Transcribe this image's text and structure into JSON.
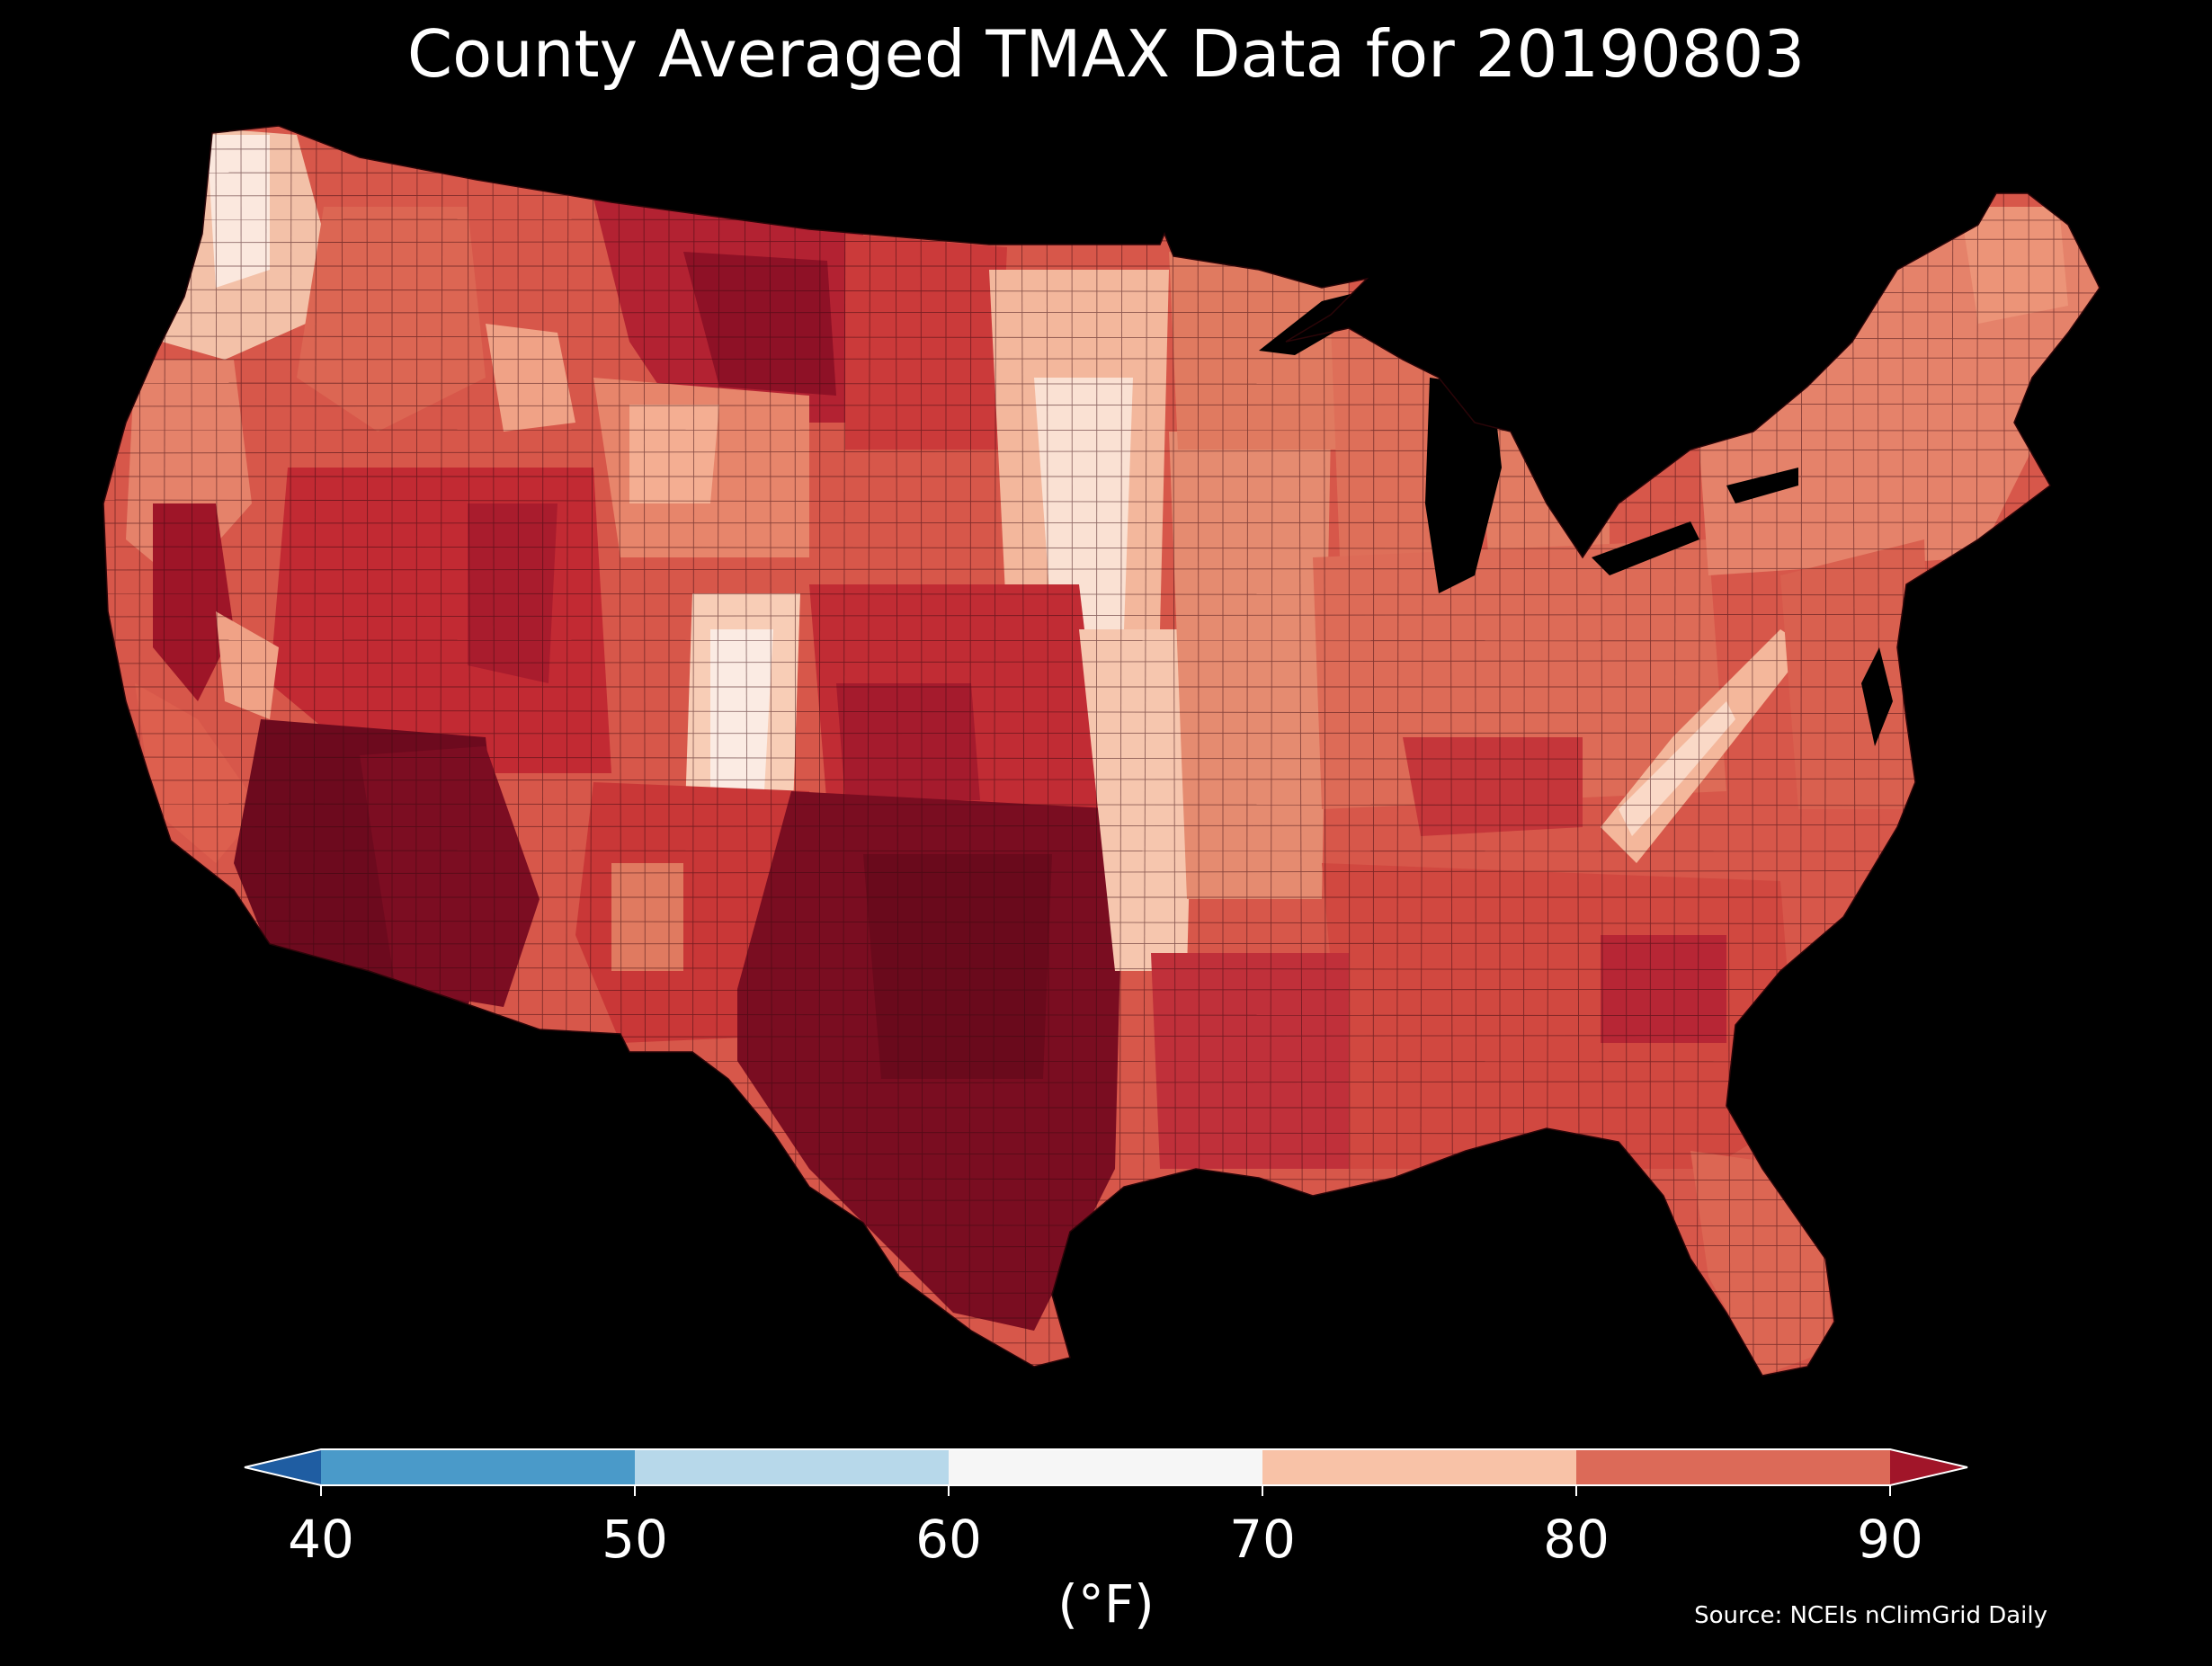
{
  "title": "County Averaged TMAX Data for 20190803",
  "source": "Source: NCEIs nClimGrid Daily",
  "colorbar": {
    "unit": "(°F)",
    "ticks": [
      "40",
      "50",
      "60",
      "70",
      "80",
      "90"
    ],
    "bins": [
      {
        "from": 40,
        "to": 50,
        "color": "#4a9ac9"
      },
      {
        "from": 50,
        "to": 60,
        "color": "#b7d8ea"
      },
      {
        "from": 60,
        "to": 70,
        "color": "#f6f6f6"
      },
      {
        "from": 70,
        "to": 80,
        "color": "#f8c2a7"
      },
      {
        "from": 80,
        "to": 90,
        "color": "#dc6a58"
      }
    ],
    "under_color": "#1f5da2",
    "over_color": "#a11529"
  },
  "map": {
    "background": "#000000",
    "palette": {
      "very_hot": "#6d0a1e",
      "hot": "#a81b2c",
      "warm": "#cf3b3b",
      "mild_warm": "#e0705c",
      "mild": "#f0a286",
      "cool": "#f8d2bf",
      "coolest": "#fbeee6"
    }
  }
}
